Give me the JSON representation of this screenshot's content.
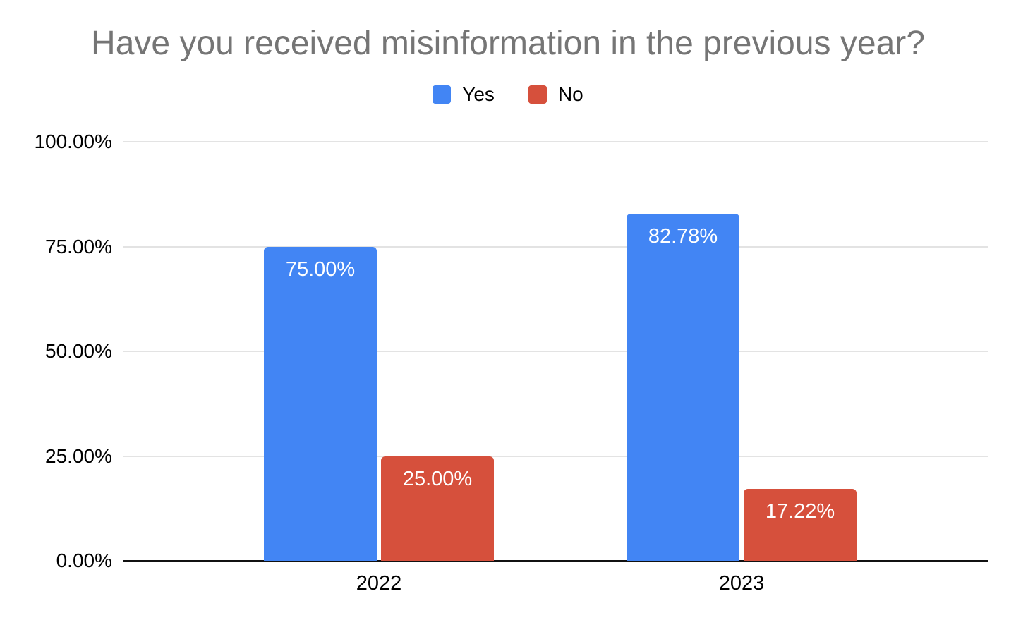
{
  "chart_data": {
    "type": "bar",
    "title": "Have you received misinformation in the previous year?",
    "categories": [
      "2022",
      "2023"
    ],
    "series": [
      {
        "name": "Yes",
        "color": "#4285f4",
        "values": [
          75.0,
          82.78
        ]
      },
      {
        "name": "No",
        "color": "#d6503c",
        "values": [
          25.0,
          17.22
        ]
      }
    ],
    "value_labels": [
      [
        "75.00%",
        "25.00%"
      ],
      [
        "82.78%",
        "17.22%"
      ]
    ],
    "yticks": [
      0,
      25,
      50,
      75,
      100
    ],
    "ytick_labels": [
      "0.00%",
      "25.00%",
      "50.00%",
      "75.00%",
      "100.00%"
    ],
    "ylim": [
      0,
      100
    ],
    "xlabel": "",
    "ylabel": "",
    "grid": true,
    "legend_position": "top"
  },
  "colors": {
    "title_text": "#757575",
    "axis_text": "#000000",
    "gridline": "#e3e3e3",
    "axis_line": "#111111",
    "bar_label_text": "#ffffff",
    "background": "#ffffff"
  }
}
